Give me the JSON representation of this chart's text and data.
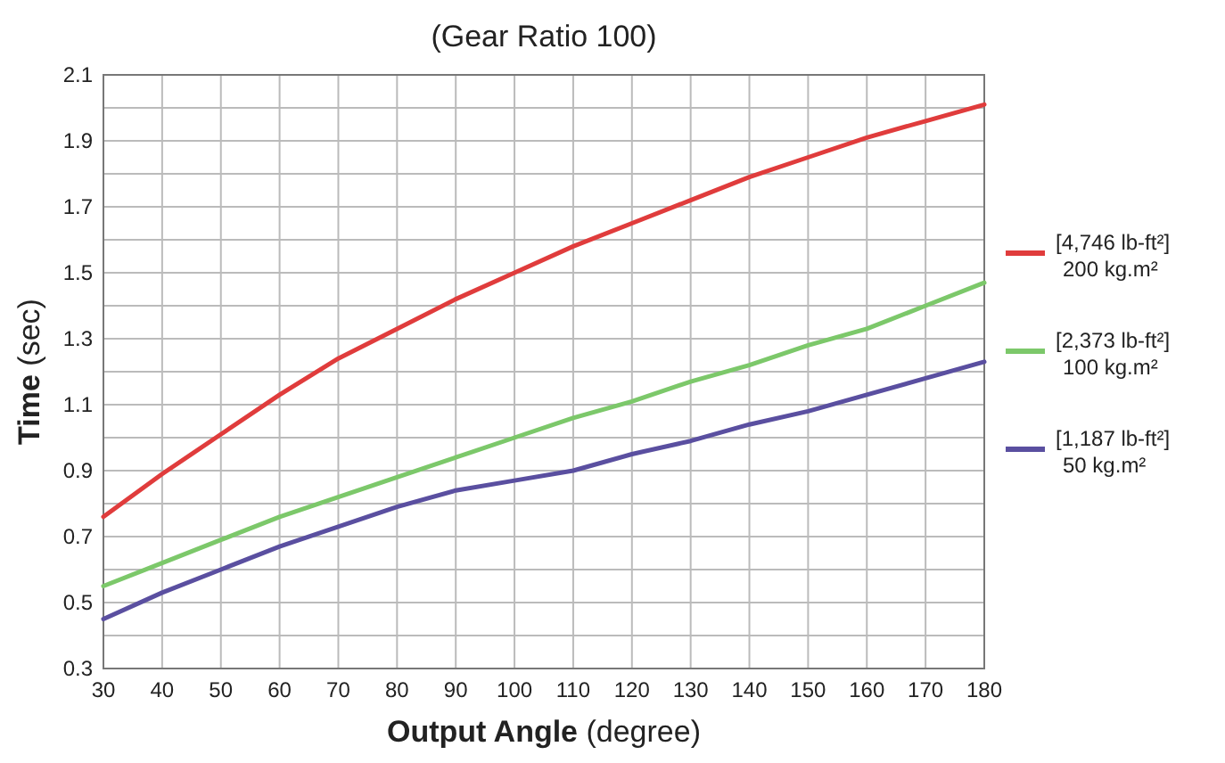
{
  "chart_data": {
    "type": "line",
    "title": "(Gear Ratio 100)",
    "xlabel": "Output Angle (degree)",
    "ylabel": "Time (sec)",
    "x": [
      30,
      40,
      50,
      60,
      70,
      80,
      90,
      100,
      110,
      120,
      130,
      140,
      150,
      160,
      170,
      180
    ],
    "series": [
      {
        "name": "[4,746 lb-ft²] 200 kg.m²",
        "color": "#e03c3c",
        "values": [
          0.76,
          0.89,
          1.01,
          1.13,
          1.24,
          1.33,
          1.42,
          1.5,
          1.58,
          1.65,
          1.72,
          1.79,
          1.85,
          1.91,
          1.96,
          2.01
        ]
      },
      {
        "name": "[2,373 lb-ft²] 100 kg.m²",
        "color": "#7cc86a",
        "values": [
          0.55,
          0.62,
          0.69,
          0.76,
          0.82,
          0.88,
          0.94,
          1.0,
          1.06,
          1.11,
          1.17,
          1.22,
          1.28,
          1.33,
          1.4,
          1.47
        ]
      },
      {
        "name": "[1,187 lb-ft²] 50 kg.m²",
        "color": "#5a4fa0",
        "values": [
          0.45,
          0.53,
          0.6,
          0.67,
          0.73,
          0.79,
          0.84,
          0.87,
          0.9,
          0.95,
          0.99,
          1.04,
          1.08,
          1.13,
          1.18,
          1.23
        ]
      }
    ],
    "xlim": [
      30,
      180
    ],
    "xticks": [
      30,
      40,
      50,
      60,
      70,
      80,
      90,
      100,
      110,
      120,
      130,
      140,
      150,
      160,
      170,
      180
    ],
    "ylim": [
      0.3,
      2.1
    ],
    "yticks": [
      0.3,
      {
        "value": 0.4,
        "label": null
      },
      0.5,
      {
        "value": 0.6,
        "label": null
      },
      0.7,
      {
        "value": 0.8,
        "label": null
      },
      0.9,
      {
        "value": 1.0,
        "label": null
      },
      1.1,
      {
        "value": 1.2,
        "label": null
      },
      1.3,
      {
        "value": 1.4,
        "label": null
      },
      1.5,
      {
        "value": 1.6,
        "label": null
      },
      1.7,
      {
        "value": 1.8,
        "label": null
      },
      1.9,
      {
        "value": 2.0,
        "label": null
      },
      2.1
    ],
    "grid": true,
    "legend": "right",
    "marker": "none",
    "line_style": "solid"
  }
}
